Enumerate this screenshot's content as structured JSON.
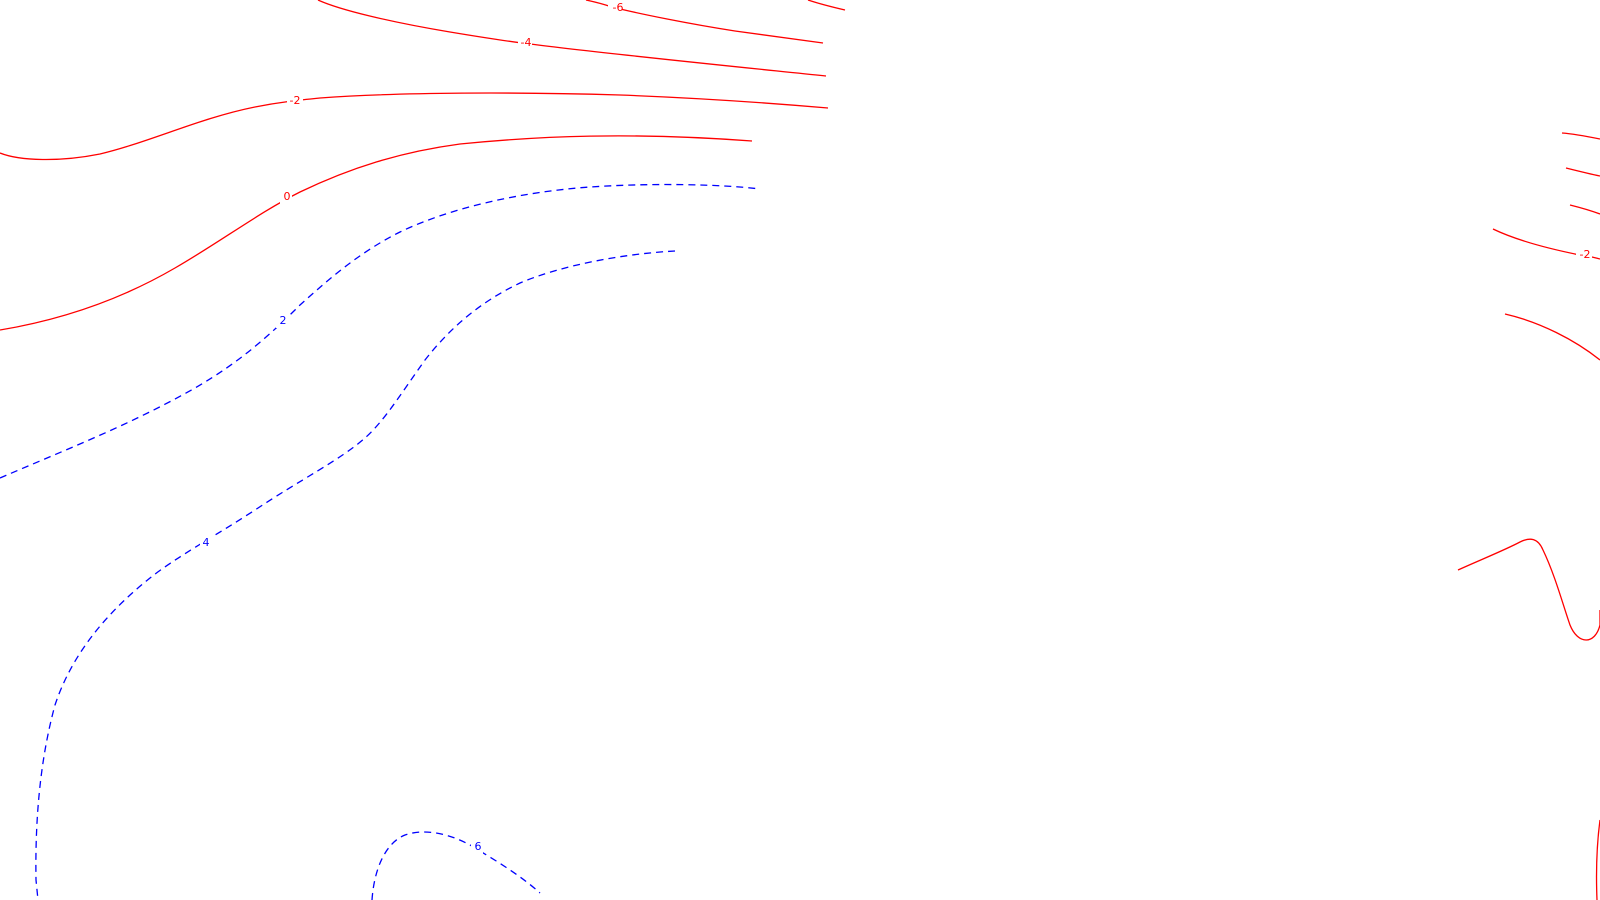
{
  "map": {
    "colors": {
      "negative": "#ff0000",
      "positive": "#0000ff",
      "background": "#ffffff"
    },
    "contour_levels": [
      {
        "level": -6,
        "label": "-6",
        "style": "solid"
      },
      {
        "level": -4,
        "label": "-4",
        "style": "solid"
      },
      {
        "level": -2,
        "label": "-2",
        "style": "solid"
      },
      {
        "level": 0,
        "label": "0",
        "style": "solid"
      },
      {
        "level": 2,
        "label": "2",
        "style": "dashed"
      },
      {
        "level": 4,
        "label": "4",
        "style": "dashed"
      },
      {
        "level": 6,
        "label": "6",
        "style": "dashed"
      }
    ],
    "labels": {
      "m6_top": "-6",
      "m4_top": "-4",
      "m2_top": "-2",
      "zero_top": "0",
      "p2_left": "2",
      "p4_left": "4",
      "p6_bottom": "6",
      "m2_right": "-2"
    }
  }
}
